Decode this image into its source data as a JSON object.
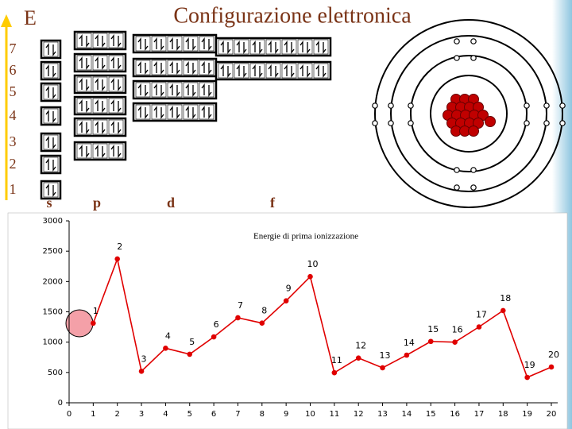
{
  "title": "Configurazione elettronica",
  "energy_label": "E",
  "levels": [
    "7",
    "6",
    "5",
    "4",
    "3",
    "2",
    "1"
  ],
  "subshells": [
    "s",
    "p",
    "d",
    "f"
  ],
  "chart_data": {
    "type": "line",
    "title": "Energie di prima ionizzazione",
    "x": [
      1,
      2,
      3,
      4,
      5,
      6,
      7,
      8,
      9,
      10,
      11,
      12,
      13,
      14,
      15,
      16,
      17,
      18,
      19,
      20
    ],
    "series": [
      {
        "name": "Energie di prima ionizzazione",
        "color": "#e00000",
        "values": [
          1312,
          2372,
          520,
          900,
          800,
          1086,
          1402,
          1314,
          1681,
          2081,
          496,
          738,
          577,
          786,
          1012,
          1000,
          1251,
          1521,
          419,
          590
        ]
      }
    ],
    "xlim": [
      0,
      20
    ],
    "xticks": [
      0,
      1,
      2,
      3,
      4,
      5,
      6,
      7,
      8,
      9,
      10,
      11,
      12,
      13,
      14,
      15,
      16,
      17,
      18,
      19,
      20
    ],
    "ylim": [
      0,
      3000
    ],
    "yticks": [
      0,
      500,
      1000,
      1500,
      2000,
      2500,
      3000
    ]
  }
}
